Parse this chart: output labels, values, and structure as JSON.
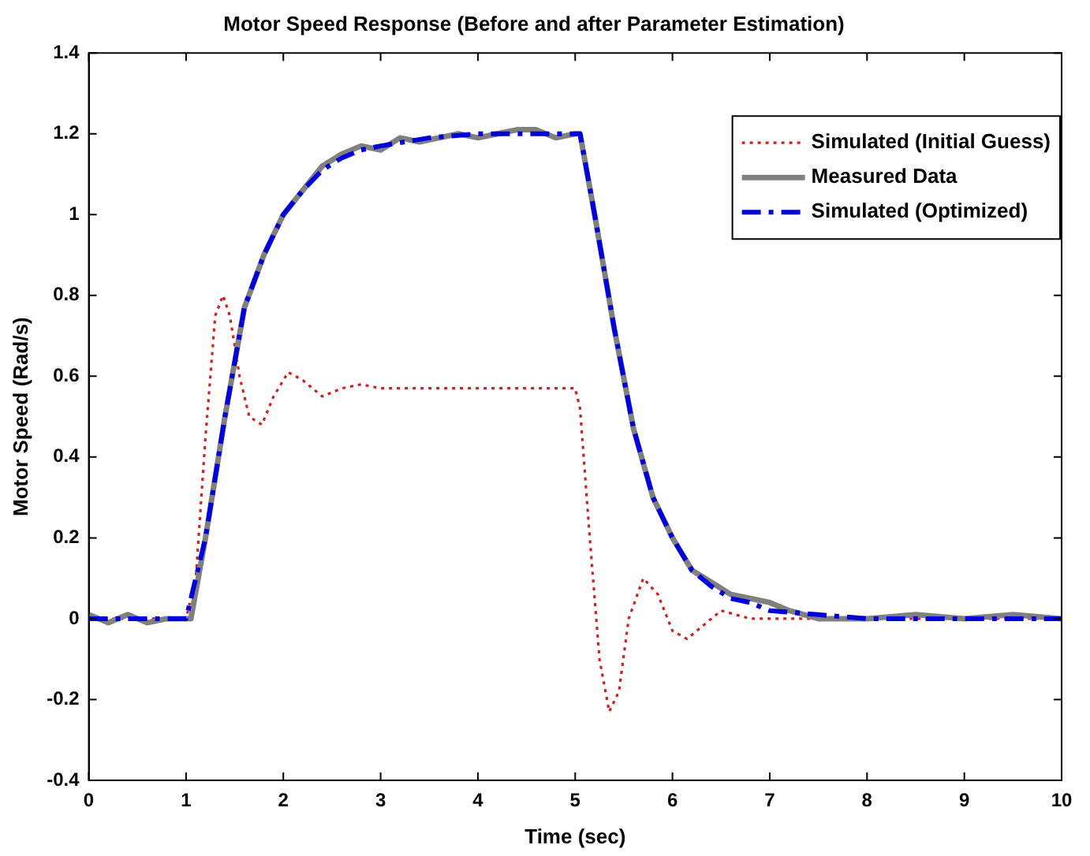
{
  "chart_data": {
    "type": "line",
    "title": "Motor Speed Response (Before and after Parameter Estimation)",
    "xlabel": "Time (sec)",
    "ylabel": "Motor Speed (Rad/s)",
    "xlim": [
      0,
      10
    ],
    "xticks": [
      0,
      1,
      2,
      3,
      4,
      5,
      6,
      7,
      8,
      9,
      10
    ],
    "ylim": [
      -0.4,
      1.4
    ],
    "yticks": [
      -0.4,
      -0.2,
      0,
      0.2,
      0.4,
      0.6,
      0.8,
      1,
      1.2,
      1.4
    ],
    "grid": false,
    "legend": "top right",
    "marker": "none",
    "series": [
      {
        "name": "Simulated (Initial Guess)",
        "color": "#cc2222",
        "line_style": "dotted",
        "x": [
          0,
          1,
          1.1,
          1.2,
          1.3,
          1.38,
          1.45,
          1.55,
          1.65,
          1.78,
          1.9,
          2.05,
          2.2,
          2.4,
          2.6,
          2.8,
          3,
          4,
          5,
          5.05,
          5.15,
          5.25,
          5.35,
          5.45,
          5.55,
          5.7,
          5.85,
          6,
          6.15,
          6.5,
          6.8,
          7,
          7.5,
          8,
          9,
          10
        ],
        "values": [
          0,
          0,
          0.1,
          0.45,
          0.75,
          0.8,
          0.75,
          0.6,
          0.5,
          0.48,
          0.55,
          0.61,
          0.59,
          0.55,
          0.57,
          0.58,
          0.57,
          0.57,
          0.57,
          0.52,
          0.2,
          -0.1,
          -0.23,
          -0.18,
          0,
          0.1,
          0.06,
          -0.03,
          -0.05,
          0.02,
          0,
          0,
          0,
          0,
          0,
          0
        ]
      },
      {
        "name": "Measured Data",
        "color": "#808080",
        "line_style": "solid",
        "x": [
          0,
          0.2,
          0.4,
          0.6,
          0.8,
          1,
          1.05,
          1.2,
          1.4,
          1.6,
          1.8,
          2,
          2.2,
          2.4,
          2.6,
          2.8,
          3,
          3.2,
          3.4,
          3.6,
          3.8,
          4,
          4.2,
          4.4,
          4.6,
          4.8,
          5,
          5.05,
          5.2,
          5.4,
          5.6,
          5.8,
          6,
          6.2,
          6.4,
          6.6,
          6.8,
          7,
          7.2,
          7.5,
          8,
          8.5,
          9,
          9.5,
          10
        ],
        "values": [
          0.01,
          -0.01,
          0.01,
          -0.01,
          0,
          0,
          0,
          0.2,
          0.5,
          0.77,
          0.9,
          1,
          1.06,
          1.12,
          1.15,
          1.17,
          1.16,
          1.19,
          1.18,
          1.19,
          1.2,
          1.19,
          1.2,
          1.21,
          1.21,
          1.19,
          1.2,
          1.2,
          1,
          0.72,
          0.47,
          0.3,
          0.2,
          0.12,
          0.09,
          0.06,
          0.05,
          0.04,
          0.02,
          0,
          0,
          0.01,
          0,
          0.01,
          0
        ]
      },
      {
        "name": "Simulated (Optimized)",
        "color": "#0000dd",
        "line_style": "dashed",
        "x": [
          0,
          1,
          1.2,
          1.4,
          1.6,
          1.8,
          2,
          2.2,
          2.4,
          2.6,
          2.8,
          3,
          3.5,
          4,
          4.5,
          5,
          5.05,
          5.2,
          5.4,
          5.6,
          5.8,
          6,
          6.2,
          6.4,
          6.6,
          6.8,
          7,
          7.5,
          8,
          9,
          10
        ],
        "values": [
          0,
          0,
          0.2,
          0.5,
          0.77,
          0.9,
          1,
          1.06,
          1.11,
          1.14,
          1.16,
          1.17,
          1.19,
          1.2,
          1.2,
          1.2,
          1.2,
          1,
          0.72,
          0.47,
          0.3,
          0.2,
          0.12,
          0.08,
          0.05,
          0.04,
          0.02,
          0.01,
          0,
          0,
          0
        ]
      }
    ]
  }
}
